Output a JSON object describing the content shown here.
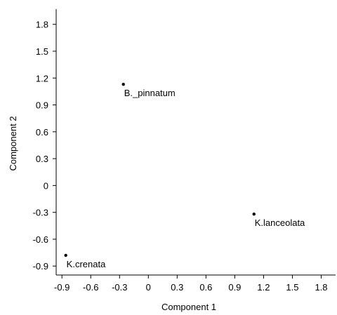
{
  "chart_data": {
    "type": "scatter",
    "xlabel": "Component 1",
    "ylabel": "Component 2",
    "xlim": [
      -0.96,
      1.95
    ],
    "ylim": [
      -1.0,
      1.97
    ],
    "xticks": [
      -0.9,
      -0.6,
      -0.3,
      0,
      0.3,
      0.6,
      0.9,
      1.2,
      1.5,
      1.8
    ],
    "xtick_labels": [
      "-0.9",
      "-0.6",
      "-0.3",
      "0",
      "0.3",
      "0.6",
      "0.9",
      "1.2",
      "1.5",
      "1.8"
    ],
    "yticks": [
      -0.9,
      -0.6,
      -0.3,
      0,
      0.3,
      0.6,
      0.9,
      1.2,
      1.5,
      1.8
    ],
    "ytick_labels": [
      "-0.9",
      "-0.6",
      "-0.3",
      "0",
      "0.3",
      "0.6",
      "0.9",
      "1.2",
      "1.5",
      "1.8"
    ],
    "grid": false,
    "points": [
      {
        "label": "B._pinnatum",
        "x": -0.26,
        "y": 1.13
      },
      {
        "label": "K.lanceolata",
        "x": 1.1,
        "y": -0.32
      },
      {
        "label": "K.crenata",
        "x": -0.86,
        "y": -0.78
      }
    ],
    "marker_color": "#000000"
  }
}
